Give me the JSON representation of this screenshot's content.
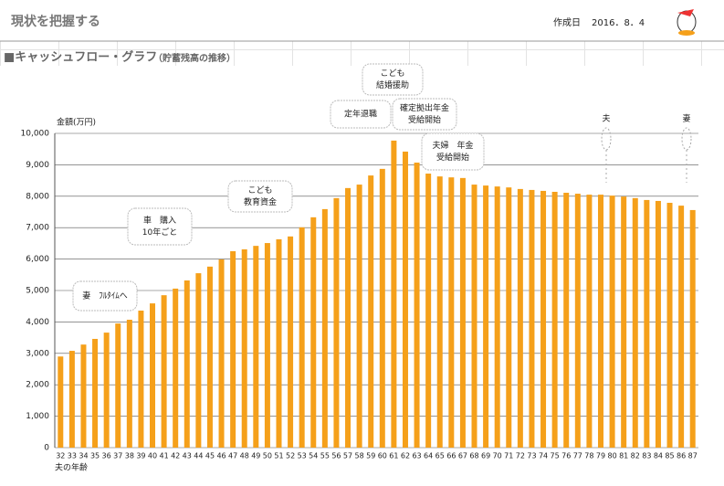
{
  "header": {
    "title": "現状を把握する",
    "date_label": "作成日",
    "date": "2016．8．4"
  },
  "chart_data": {
    "type": "bar",
    "title": "■キャッシュフロー・グラフ",
    "subtitle": "（貯蓄残高の推移）",
    "y_label": "金額(万円)",
    "x_label": "夫の年齢",
    "color": "#f5a01a",
    "categories": [
      "32",
      "33",
      "34",
      "35",
      "36",
      "37",
      "38",
      "39",
      "40",
      "41",
      "42",
      "43",
      "44",
      "45",
      "46",
      "47",
      "48",
      "49",
      "50",
      "51",
      "52",
      "53",
      "54",
      "55",
      "56",
      "57",
      "58",
      "59",
      "60",
      "61",
      "62",
      "63",
      "64",
      "65",
      "66",
      "67",
      "68",
      "69",
      "70",
      "71",
      "72",
      "73",
      "74",
      "75",
      "76",
      "77",
      "78",
      "79",
      "80",
      "81",
      "82",
      "83",
      "84",
      "85",
      "86",
      "87"
    ],
    "values": [
      2900,
      3080,
      3280,
      3460,
      3660,
      3950,
      4070,
      4360,
      4590,
      4850,
      5060,
      5320,
      5550,
      5760,
      5990,
      6250,
      6310,
      6420,
      6510,
      6630,
      6720,
      7010,
      7330,
      7590,
      7940,
      8260,
      8370,
      8660,
      8870,
      9770,
      9420,
      9070,
      8720,
      8630,
      8600,
      8580,
      8370,
      8340,
      8310,
      8280,
      8230,
      8200,
      8170,
      8140,
      8110,
      8080,
      8050,
      8050,
      8020,
      7990,
      7940,
      7880,
      7850,
      7790,
      7700,
      7560
    ],
    "ylim": [
      0,
      10000
    ],
    "yticks": [
      0,
      {
        "value": 1000,
        "label": "1,000"
      },
      {
        "value": 2000,
        "label": "2,000"
      },
      {
        "value": 3000,
        "label": "3,000"
      },
      {
        "value": 4000,
        "label": "4,000"
      },
      {
        "value": 5000,
        "label": "5,000"
      },
      {
        "value": 6000,
        "label": "6,000"
      },
      {
        "value": 7000,
        "label": "7,000"
      },
      {
        "value": 8000,
        "label": "8,000"
      },
      {
        "value": 9000,
        "label": "9,000"
      },
      {
        "value": 10000,
        "label": "10,000"
      }
    ],
    "grid": true,
    "annotations": [
      {
        "lines": [
          "妻　ﾌﾙﾀｲﾑへ"
        ]
      },
      {
        "lines": [
          "車　購入",
          "10年ごと"
        ]
      },
      {
        "lines": [
          "こども",
          "教育資金"
        ]
      },
      {
        "lines": [
          "定年退職"
        ]
      },
      {
        "lines": [
          "こども",
          "結婚援助"
        ]
      },
      {
        "lines": [
          "確定拠出年金",
          "受給開始"
        ]
      },
      {
        "lines": [
          "夫婦　年金",
          "受給開始"
        ]
      },
      {
        "lines": [
          "夫"
        ]
      },
      {
        "lines": [
          "妻"
        ]
      }
    ]
  }
}
